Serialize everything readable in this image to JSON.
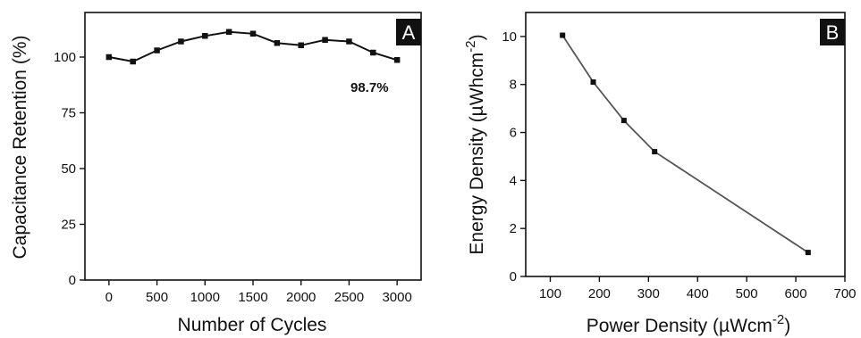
{
  "chart_data": [
    {
      "type": "line",
      "panel_label": "A",
      "xlabel": "Number of Cycles",
      "ylabel": "Capacitance Retention (%)",
      "xlim": [
        -250,
        3250
      ],
      "ylim": [
        0,
        120
      ],
      "x_ticks": [
        0,
        500,
        1000,
        1500,
        2000,
        2500,
        3000
      ],
      "y_ticks": [
        0,
        25,
        50,
        75,
        100
      ],
      "series": [
        {
          "x": [
            0,
            250,
            500,
            750,
            1000,
            1250,
            1500,
            1750,
            2000,
            2250,
            2500,
            2750,
            3000
          ],
          "y": [
            100,
            98,
            103,
            107,
            109.5,
            111.3,
            110.5,
            106.3,
            105.3,
            107.7,
            107,
            102,
            98.7
          ],
          "color": "#111111",
          "marker": "square"
        }
      ],
      "annotations": [
        {
          "text": "98.7%",
          "x": 2850,
          "y": 93
        }
      ],
      "grid": false
    },
    {
      "type": "line",
      "panel_label": "B",
      "xlabel": "Power Density (µWcm",
      "xlabel_sup": "-2",
      "xlabel_close": ")",
      "ylabel": "Energy Density (µWhcm",
      "ylabel_sup": "-2",
      "ylabel_close": ")",
      "xlim": [
        50,
        700
      ],
      "ylim": [
        0,
        11
      ],
      "x_ticks": [
        100,
        200,
        300,
        400,
        500,
        600,
        700
      ],
      "y_ticks": [
        0,
        2,
        4,
        6,
        8,
        10
      ],
      "series": [
        {
          "x": [
            125,
            187.5,
            250,
            312.5,
            625
          ],
          "y": [
            10.05,
            8.1,
            6.5,
            5.2,
            1.0
          ],
          "color": "#555555",
          "marker": "square"
        }
      ],
      "grid": false
    }
  ]
}
